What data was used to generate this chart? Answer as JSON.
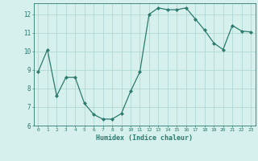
{
  "x": [
    0,
    1,
    2,
    3,
    4,
    5,
    6,
    7,
    8,
    9,
    10,
    11,
    12,
    13,
    14,
    15,
    16,
    17,
    18,
    19,
    20,
    21,
    22,
    23
  ],
  "y": [
    8.9,
    10.1,
    7.6,
    8.6,
    8.6,
    7.2,
    6.6,
    6.35,
    6.35,
    6.65,
    7.85,
    8.9,
    12.0,
    12.35,
    12.25,
    12.25,
    12.35,
    11.75,
    11.15,
    10.45,
    10.1,
    11.4,
    11.1,
    11.05
  ],
  "xlim": [
    -0.5,
    23.5
  ],
  "ylim": [
    6,
    12.6
  ],
  "yticks": [
    6,
    7,
    8,
    9,
    10,
    11,
    12
  ],
  "xticks": [
    0,
    1,
    2,
    3,
    4,
    5,
    6,
    7,
    8,
    9,
    10,
    11,
    12,
    13,
    14,
    15,
    16,
    17,
    18,
    19,
    20,
    21,
    22,
    23
  ],
  "xlabel": "Humidex (Indice chaleur)",
  "line_color": "#2d7a6e",
  "marker_color": "#2d7a6e",
  "bg_color": "#d6f0ed",
  "grid_color": "#b0d8d4",
  "tick_label_color": "#2d7a6e",
  "xlabel_color": "#2d7a6e"
}
